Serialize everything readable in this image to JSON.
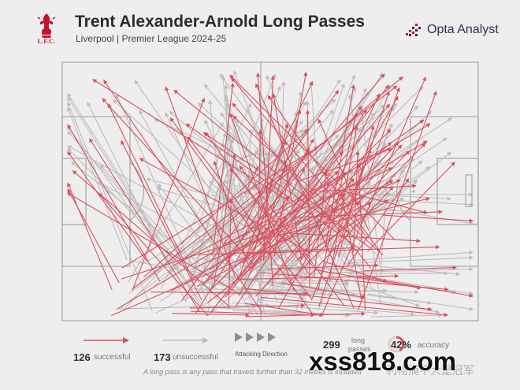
{
  "header": {
    "title": "Trent Alexander-Arnold Long Passes",
    "subtitle": "Liverpool | Premier League 2024-25",
    "club_badge_text": "L.F.C.",
    "brand": "Opta Analyst"
  },
  "colors": {
    "successful": "#d9505e",
    "unsuccessful": "#bdbdbd",
    "club": "#c8102e",
    "brand": "#3a2a55",
    "pitch_lines": "#a6a6a6"
  },
  "legend": {
    "successful_count": "126",
    "successful_label": "successful",
    "unsuccessful_count": "173",
    "unsuccessful_label": "unsuccessful",
    "attacking_direction_label": "Attacking Direction",
    "long_passes_count": "299",
    "long_passes_label_1": "long",
    "long_passes_label_2": "passes",
    "accuracy_value": "42%",
    "accuracy_label": "accuracy",
    "accuracy_fraction": 0.42
  },
  "footnote": "A long pass is any pass that travels further than 32 metres is included",
  "watermark": "xss818.com",
  "watermark_cn": "利物浦不大是冠军"
}
